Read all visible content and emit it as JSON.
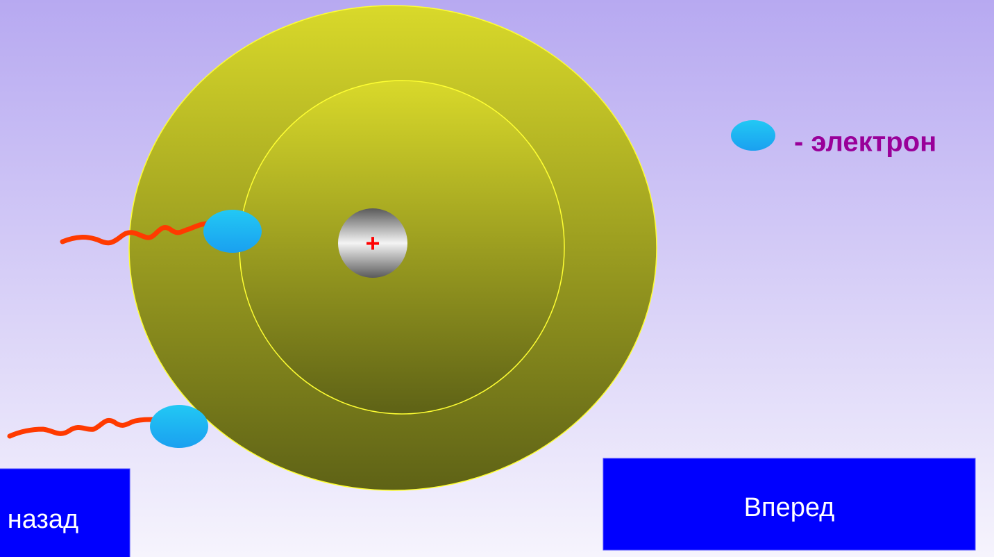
{
  "nucleus": {
    "label": "+"
  },
  "legend": {
    "label": "- электрон"
  },
  "buttons": [
    {
      "label": "назад"
    },
    {
      "label": "Вперед"
    }
  ]
}
